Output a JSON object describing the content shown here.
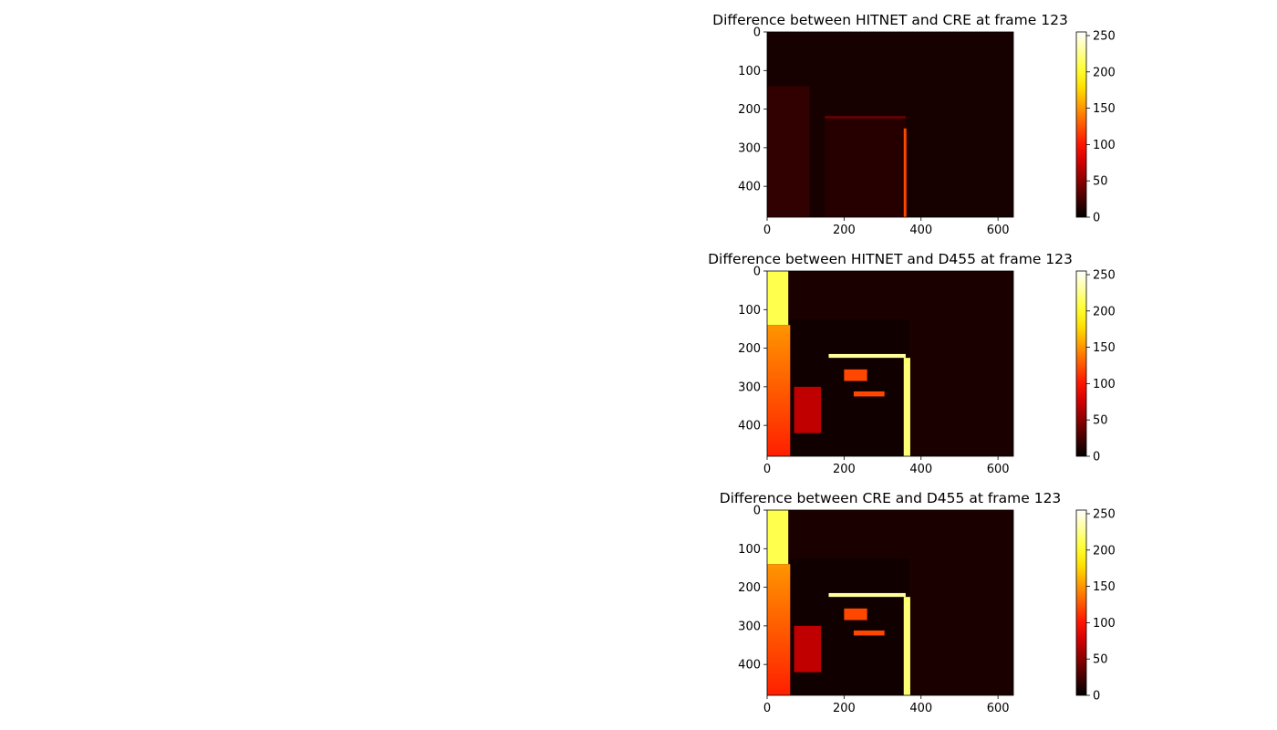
{
  "chart_data": [
    {
      "type": "heatmap",
      "title": "Difference between HITNET and CRE at frame 123",
      "xlabel": "",
      "ylabel": "",
      "image_size": [
        640,
        480
      ],
      "xlim": [
        0,
        640
      ],
      "ylim": [
        480,
        0
      ],
      "x_ticks": [
        0,
        200,
        400,
        600
      ],
      "y_ticks": [
        0,
        100,
        200,
        300,
        400
      ],
      "colorbar": {
        "cmap": "hot",
        "range": [
          0,
          255
        ],
        "ticks": [
          0,
          50,
          100,
          150,
          200,
          250
        ]
      },
      "grid": false,
      "regions": [
        {
          "shape": "rect",
          "x0": 0,
          "x1": 640,
          "y0": 0,
          "y1": 480,
          "value": 8
        },
        {
          "shape": "rect",
          "x0": 0,
          "x1": 110,
          "y0": 140,
          "y1": 480,
          "value": 18
        },
        {
          "shape": "rect",
          "x0": 150,
          "x1": 360,
          "y0": 220,
          "y1": 480,
          "value": 14
        },
        {
          "shape": "rect",
          "x0": 355,
          "x1": 362,
          "y0": 250,
          "y1": 480,
          "value": 120
        },
        {
          "shape": "rect",
          "x0": 150,
          "x1": 360,
          "y0": 218,
          "y1": 224,
          "value": 40
        }
      ]
    },
    {
      "type": "heatmap",
      "title": "Difference between HITNET and D455 at frame 123",
      "xlabel": "",
      "ylabel": "",
      "image_size": [
        640,
        480
      ],
      "xlim": [
        0,
        640
      ],
      "ylim": [
        480,
        0
      ],
      "x_ticks": [
        0,
        200,
        400,
        600
      ],
      "y_ticks": [
        0,
        100,
        200,
        300,
        400
      ],
      "colorbar": {
        "cmap": "hot",
        "range": [
          0,
          255
        ],
        "ticks": [
          0,
          50,
          100,
          150,
          200,
          250
        ]
      },
      "grid": false,
      "regions": [
        {
          "shape": "rect",
          "x0": 0,
          "x1": 640,
          "y0": 0,
          "y1": 480,
          "value": 10
        },
        {
          "shape": "rect",
          "x0": 0,
          "x1": 55,
          "y0": 0,
          "y1": 140,
          "value": 210
        },
        {
          "shape": "grad",
          "x0": 0,
          "x1": 120,
          "y0": 140,
          "y1": 480,
          "v_top": 150,
          "v_bottom": 105
        },
        {
          "shape": "rect",
          "x0": 60,
          "x1": 370,
          "y0": 125,
          "y1": 480,
          "value": 6
        },
        {
          "shape": "rect",
          "x0": 160,
          "x1": 360,
          "y0": 215,
          "y1": 225,
          "value": 230
        },
        {
          "shape": "rect",
          "x0": 355,
          "x1": 372,
          "y0": 225,
          "y1": 480,
          "value": 220
        },
        {
          "shape": "rect",
          "x0": 200,
          "x1": 260,
          "y0": 255,
          "y1": 285,
          "value": 120
        },
        {
          "shape": "rect",
          "x0": 225,
          "x1": 305,
          "y0": 312,
          "y1": 325,
          "value": 120
        },
        {
          "shape": "rect",
          "x0": 70,
          "x1": 140,
          "y0": 300,
          "y1": 420,
          "value": 70
        }
      ]
    },
    {
      "type": "heatmap",
      "title": "Difference between CRE and D455 at frame 123",
      "xlabel": "",
      "ylabel": "",
      "image_size": [
        640,
        480
      ],
      "xlim": [
        0,
        640
      ],
      "ylim": [
        480,
        0
      ],
      "x_ticks": [
        0,
        200,
        400,
        600
      ],
      "y_ticks": [
        0,
        100,
        200,
        300,
        400
      ],
      "colorbar": {
        "cmap": "hot",
        "range": [
          0,
          255
        ],
        "ticks": [
          0,
          50,
          100,
          150,
          200,
          250
        ]
      },
      "grid": false,
      "regions": [
        {
          "shape": "rect",
          "x0": 0,
          "x1": 640,
          "y0": 0,
          "y1": 480,
          "value": 10
        },
        {
          "shape": "rect",
          "x0": 0,
          "x1": 55,
          "y0": 0,
          "y1": 140,
          "value": 210
        },
        {
          "shape": "grad",
          "x0": 0,
          "x1": 120,
          "y0": 140,
          "y1": 480,
          "v_top": 150,
          "v_bottom": 105
        },
        {
          "shape": "rect",
          "x0": 60,
          "x1": 370,
          "y0": 125,
          "y1": 480,
          "value": 6
        },
        {
          "shape": "rect",
          "x0": 160,
          "x1": 360,
          "y0": 215,
          "y1": 225,
          "value": 230
        },
        {
          "shape": "rect",
          "x0": 355,
          "x1": 372,
          "y0": 225,
          "y1": 480,
          "value": 220
        },
        {
          "shape": "rect",
          "x0": 200,
          "x1": 260,
          "y0": 255,
          "y1": 285,
          "value": 120
        },
        {
          "shape": "rect",
          "x0": 225,
          "x1": 305,
          "y0": 312,
          "y1": 325,
          "value": 120
        },
        {
          "shape": "rect",
          "x0": 70,
          "x1": 140,
          "y0": 300,
          "y1": 420,
          "value": 70
        }
      ]
    }
  ]
}
